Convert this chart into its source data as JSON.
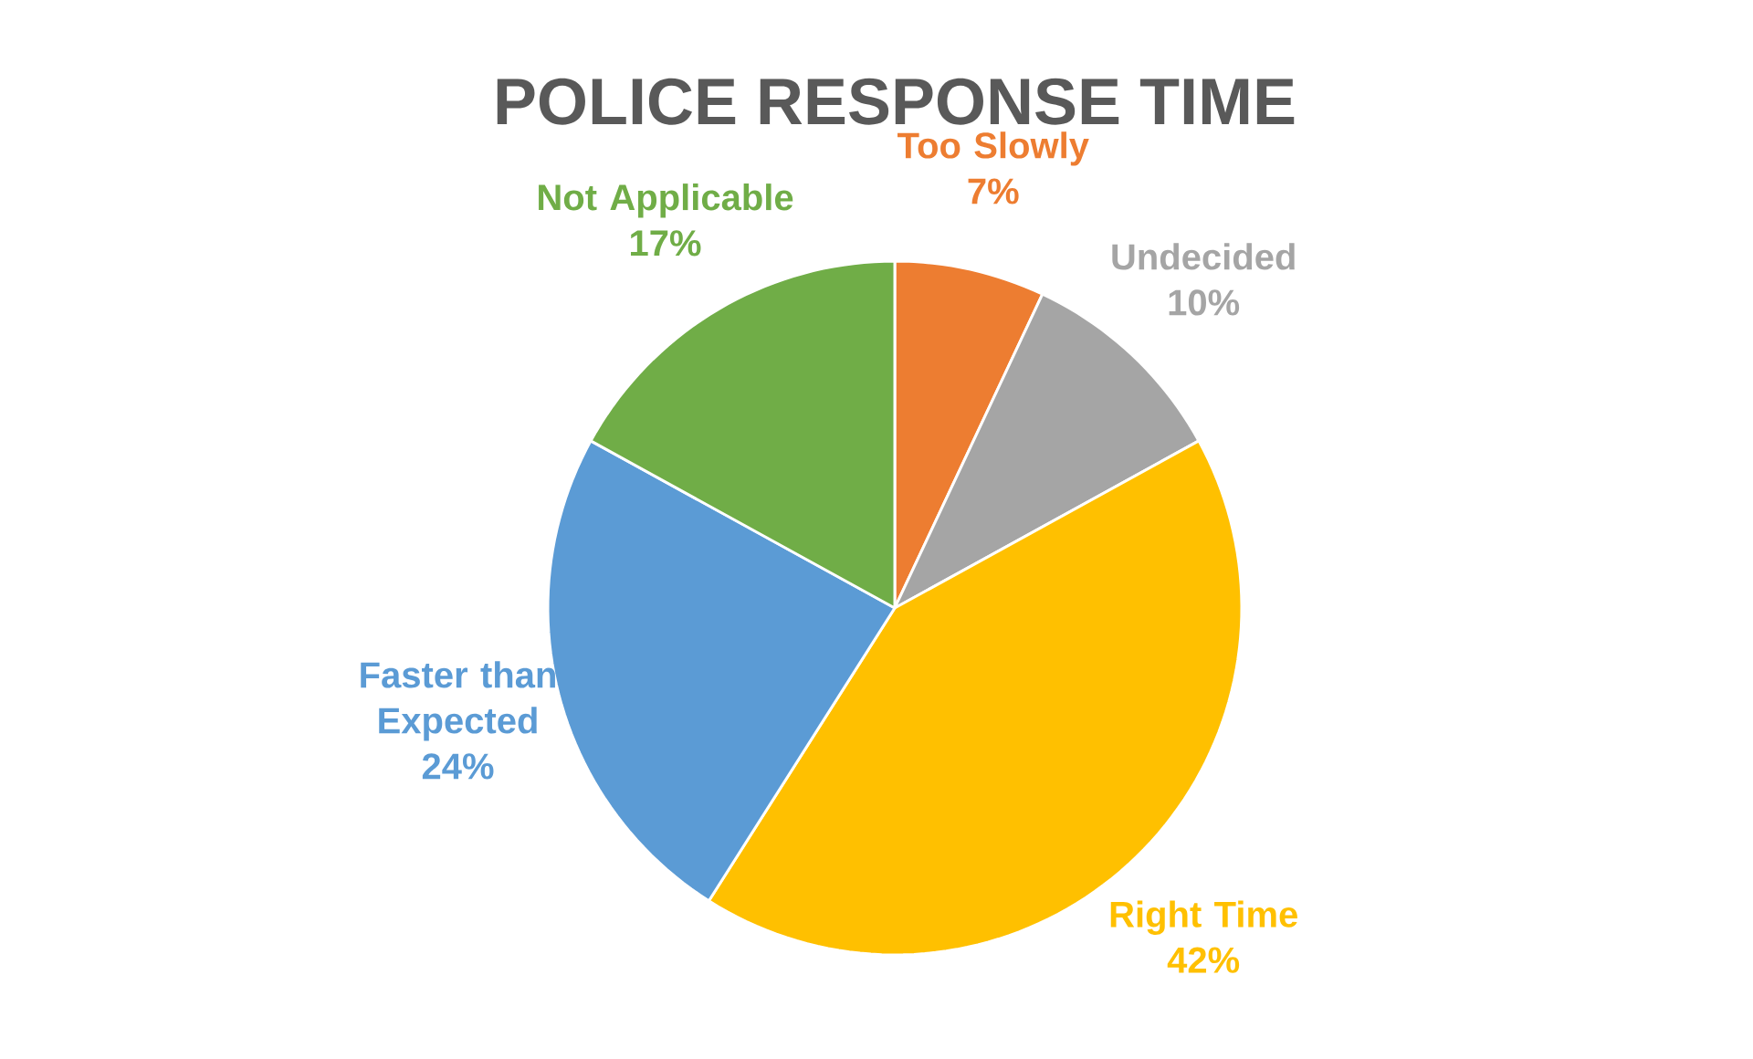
{
  "chart_data": {
    "type": "pie",
    "title": "POLICE RESPONSE TIME",
    "categories": [
      "Too Slowly",
      "Undecided",
      "Right Time",
      "Faster than Expected",
      "Not Applicable"
    ],
    "values": [
      7,
      10,
      42,
      24,
      17
    ],
    "colors": [
      "#ed7d31",
      "#a5a5a5",
      "#ffc000",
      "#5b9bd5",
      "#70ad47"
    ],
    "value_labels": [
      "7%",
      "10%",
      "42%",
      "24%",
      "17%"
    ]
  }
}
